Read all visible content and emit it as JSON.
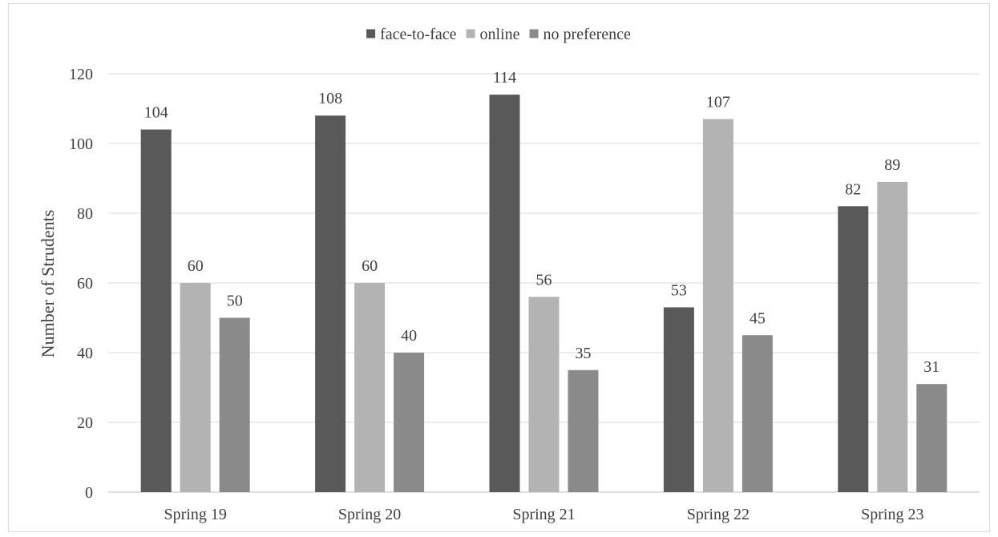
{
  "chart_data": {
    "type": "bar",
    "categories": [
      "Spring 19",
      "Spring 20",
      "Spring 21",
      "Spring 22",
      "Spring 23"
    ],
    "series": [
      {
        "name": "face-to-face",
        "values": [
          104,
          108,
          114,
          53,
          82
        ],
        "color": "#595959"
      },
      {
        "name": "online",
        "values": [
          60,
          60,
          56,
          107,
          89
        ],
        "color": "#b3b3b3"
      },
      {
        "name": "no preference",
        "values": [
          50,
          40,
          35,
          45,
          31
        ],
        "color": "#8a8a8a"
      }
    ],
    "xlabel": "",
    "ylabel": "Number of Strudents",
    "ylim": [
      0,
      120
    ],
    "yticks": [
      0,
      20,
      40,
      60,
      80,
      100,
      120
    ],
    "grid": true,
    "legend_position": "top-center",
    "data_labels": true
  }
}
